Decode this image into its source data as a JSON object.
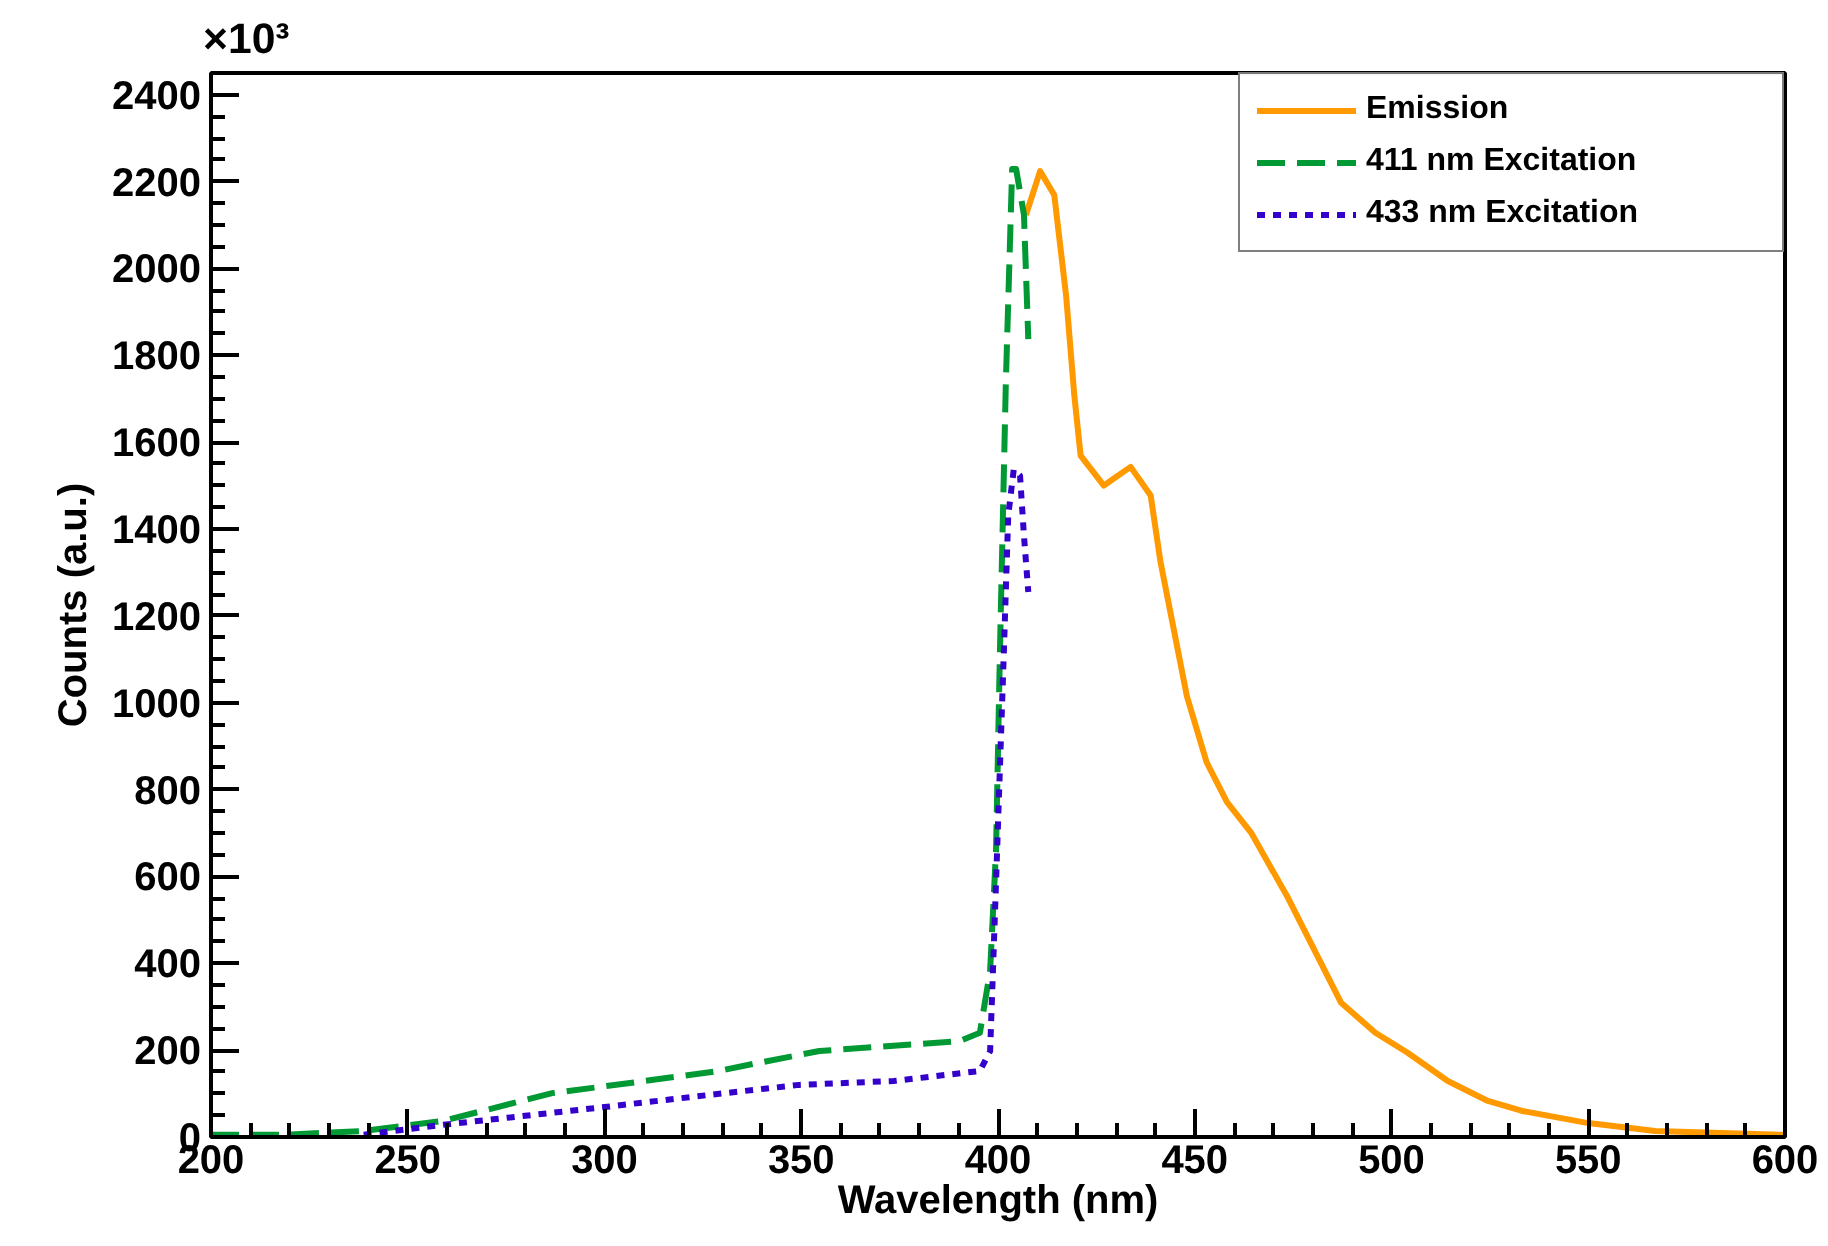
{
  "chart_data": {
    "type": "line",
    "xlabel": "Wavelength (nm)",
    "ylabel": "Counts (a.u.)",
    "annotations": [
      "×10³"
    ],
    "xlim": [
      200,
      600
    ],
    "ylim": [
      0,
      2450
    ],
    "xticks": [
      200,
      250,
      300,
      350,
      400,
      450,
      500,
      550,
      600
    ],
    "yticks": [
      0,
      200,
      400,
      600,
      800,
      1000,
      1200,
      1400,
      1600,
      1800,
      2000,
      2200,
      2400
    ],
    "grid": false,
    "legend": "top right",
    "series": [
      {
        "name": "Emission",
        "color": "#ff9900",
        "line_style": "solid",
        "x": [
          407.1,
          410.7,
          414.3,
          417.3,
          419.4,
          421,
          426.9,
          433.7,
          438.8,
          441.3,
          448,
          453,
          458.2,
          464.3,
          473.5,
          487.2,
          495.9,
          504.1,
          514.3,
          524.5,
          533.2,
          550,
          567,
          599.5
        ],
        "values": [
          2123,
          2224,
          2169,
          1938,
          1707,
          1569,
          1500,
          1543,
          1477,
          1324,
          1015,
          863,
          771,
          701,
          554,
          309,
          240,
          194,
          129,
          83,
          60,
          32,
          14,
          5
        ]
      },
      {
        "name": "411 nm Excitation",
        "color": "#009933",
        "line_style": "dashed",
        "x": [
          200,
          218,
          238.8,
          259,
          286.7,
          307,
          329,
          339.3,
          354.6,
          390.3,
          395.4,
          398,
          399.5,
          400.5,
          402,
          403.6,
          404.6,
          406.6,
          407.7
        ],
        "values": [
          5,
          5,
          14,
          37,
          101,
          125,
          152,
          171,
          198,
          221,
          240,
          383,
          660,
          1121,
          1740,
          2229,
          2229,
          2123,
          1837
        ]
      },
      {
        "name": "433 nm Excitation",
        "color": "#3300cc",
        "line_style": "dotted",
        "x": [
          238.8,
          259,
          300,
          330.6,
          349.5,
          373.5,
          395.4,
          398,
          399.5,
          401.5,
          402.6,
          404,
          405.6,
          406.6,
          407.7
        ],
        "values": [
          5,
          28,
          69,
          101,
          120,
          129,
          152,
          198,
          586,
          1121,
          1431,
          1537,
          1523,
          1384,
          1255
        ]
      }
    ]
  }
}
